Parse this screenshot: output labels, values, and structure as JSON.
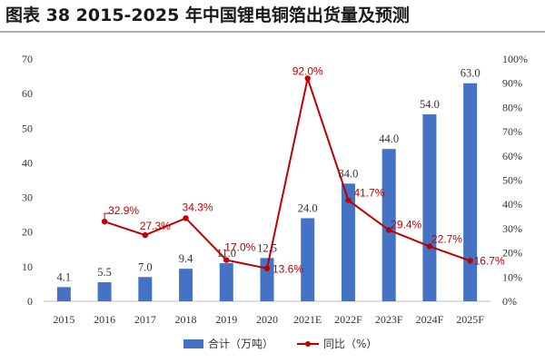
{
  "title": "图表 38 2015-2025 年中国锂电铜箔出货量及预测",
  "chart_data": {
    "type": "bar",
    "categories": [
      "2015",
      "2016",
      "2017",
      "2018",
      "2019",
      "2020",
      "2021E",
      "2022F",
      "2023F",
      "2024F",
      "2025F"
    ],
    "series": [
      {
        "name": "合计（万吨）",
        "type": "bar",
        "axis": "left",
        "color": "#4472c4",
        "values": [
          4.1,
          5.5,
          7.0,
          9.4,
          11.0,
          12.5,
          24.0,
          34.0,
          44.0,
          54.0,
          63.0
        ],
        "labels": [
          "4.1",
          "5.5",
          "7.0",
          "9.4",
          "11.0",
          "12.5",
          "24.0",
          "34.0",
          "44.0",
          "54.0",
          "63.0"
        ]
      },
      {
        "name": "同比（%）",
        "type": "line",
        "axis": "right",
        "color": "#c00000",
        "values": [
          null,
          32.9,
          27.3,
          34.3,
          17.0,
          13.6,
          92.0,
          41.7,
          29.4,
          22.7,
          16.7
        ],
        "labels": [
          "",
          "32.9%",
          "27.3%",
          "34.3%",
          "17.0%",
          "13.6%",
          "92.0%",
          "41.7%",
          "29.4%",
          "22.7%",
          "16.7%"
        ]
      }
    ],
    "y_left": {
      "min": 0,
      "max": 70,
      "ticks": [
        "0",
        "10",
        "20",
        "30",
        "40",
        "50",
        "60",
        "70"
      ]
    },
    "y_right": {
      "min": 0,
      "max": 100,
      "ticks": [
        "0%",
        "10%",
        "20%",
        "30%",
        "40%",
        "50%",
        "60%",
        "70%",
        "80%",
        "90%",
        "100%"
      ]
    },
    "grid": false,
    "legend": "bottom-center"
  }
}
